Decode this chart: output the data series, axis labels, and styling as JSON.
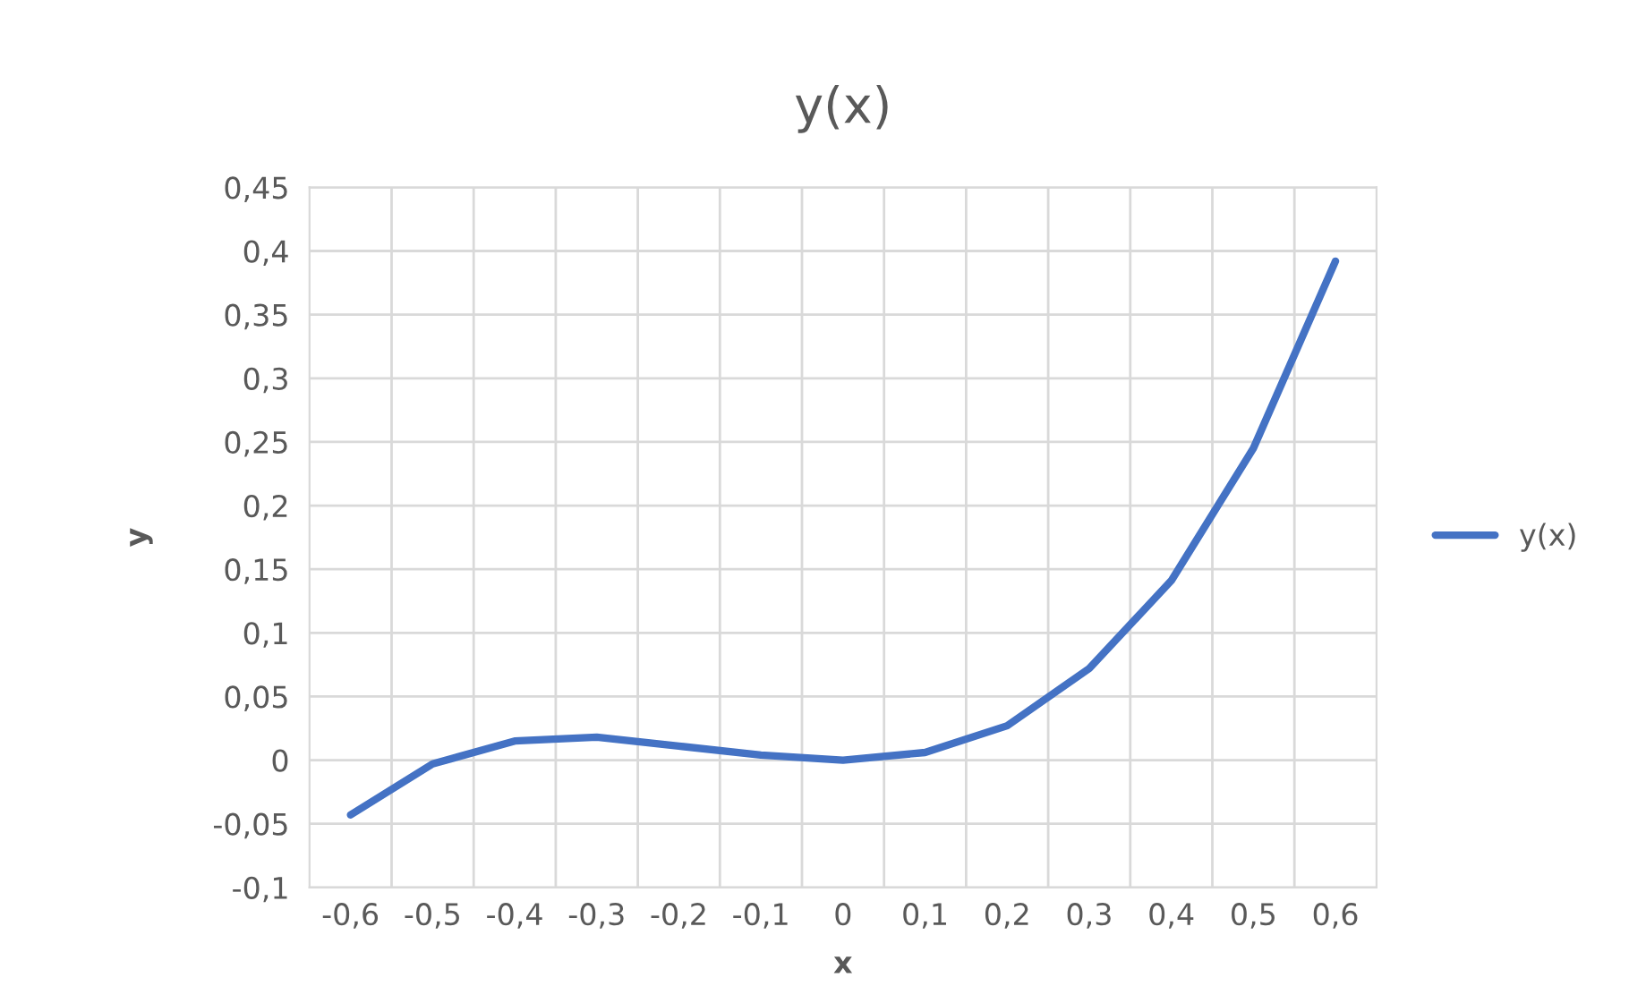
{
  "chart_data": {
    "type": "line",
    "title": "y(x)",
    "xlabel": "x",
    "ylabel": "y",
    "categories": [
      "-0,6",
      "-0,5",
      "-0,4",
      "-0,3",
      "-0,2",
      "-0,1",
      "0",
      "0,1",
      "0,2",
      "0,3",
      "0,4",
      "0,5",
      "0,6"
    ],
    "series": [
      {
        "name": "y(x)",
        "color": "#4472c4",
        "values": [
          -0.043,
          -0.003,
          0.015,
          0.018,
          0.011,
          0.004,
          0.0,
          0.006,
          0.027,
          0.072,
          0.141,
          0.245,
          0.392
        ]
      }
    ],
    "ylim": [
      -0.1,
      0.45
    ],
    "yticks": [
      {
        "value": -0.1,
        "label": "-0,1"
      },
      {
        "value": -0.05,
        "label": "-0,05"
      },
      0,
      {
        "value": 0.05,
        "label": "0,05"
      },
      {
        "value": 0.1,
        "label": "0,1"
      },
      {
        "value": 0.15,
        "label": "0,15"
      },
      {
        "value": 0.2,
        "label": "0,2"
      },
      {
        "value": 0.25,
        "label": "0,25"
      },
      {
        "value": 0.3,
        "label": "0,3"
      },
      {
        "value": 0.35,
        "label": "0,35"
      },
      {
        "value": 0.4,
        "label": "0,4"
      },
      {
        "value": 0.45,
        "label": "0,45"
      }
    ],
    "grid": true,
    "legend": "right",
    "marker": "none",
    "line_style": "solid"
  }
}
